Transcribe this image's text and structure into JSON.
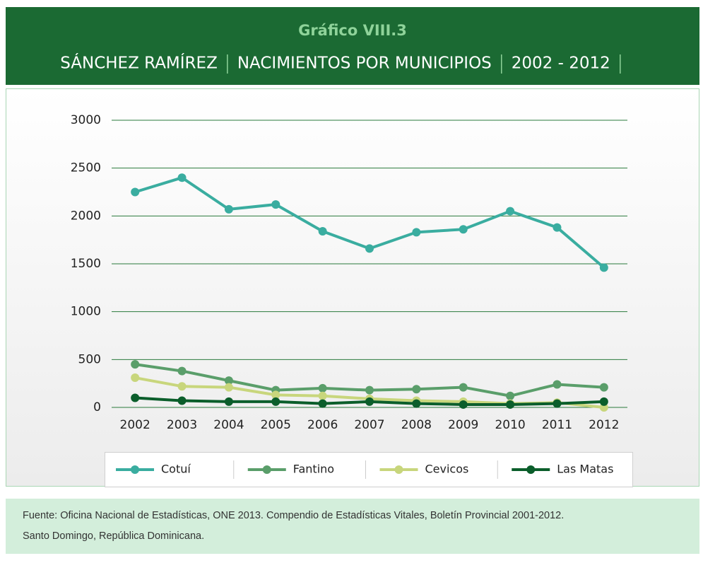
{
  "chart_data": {
    "type": "line",
    "title": "Gráfico VIII.3",
    "subtitle_parts": [
      "SÁNCHEZ RAMÍREZ",
      "NACIMIENTOS POR MUNICIPIOS",
      "2002 - 2012"
    ],
    "categories": [
      "2002",
      "2003",
      "2004",
      "2005",
      "2006",
      "2007",
      "2008",
      "2009",
      "2010",
      "2011",
      "2012"
    ],
    "series": [
      {
        "name": "Cotuí",
        "color": "#3aada0",
        "values": [
          2250,
          2400,
          2070,
          2120,
          1840,
          1660,
          1830,
          1860,
          2050,
          1880,
          1460
        ]
      },
      {
        "name": "Fantino",
        "color": "#5a9e6a",
        "values": [
          450,
          380,
          280,
          180,
          200,
          180,
          190,
          210,
          120,
          240,
          210
        ]
      },
      {
        "name": "Cevicos",
        "color": "#c8d67c",
        "values": [
          310,
          220,
          210,
          130,
          120,
          90,
          70,
          60,
          40,
          50,
          0
        ]
      },
      {
        "name": "Las Matas",
        "color": "#0b5e2b",
        "values": [
          100,
          70,
          60,
          60,
          40,
          60,
          40,
          30,
          30,
          40,
          60
        ]
      }
    ],
    "ylim": [
      0,
      3000
    ],
    "yticks": [
      0,
      500,
      1000,
      1500,
      2000,
      2500,
      3000
    ],
    "grid": true,
    "legend": "bottom",
    "source": [
      "Fuente: Oficina Nacional de Estadísticas, ONE 2013. Compendio de Estadísticas Vitales, Boletín Provincial 2001-2012.",
      "Santo Domingo, República Dominicana."
    ]
  }
}
